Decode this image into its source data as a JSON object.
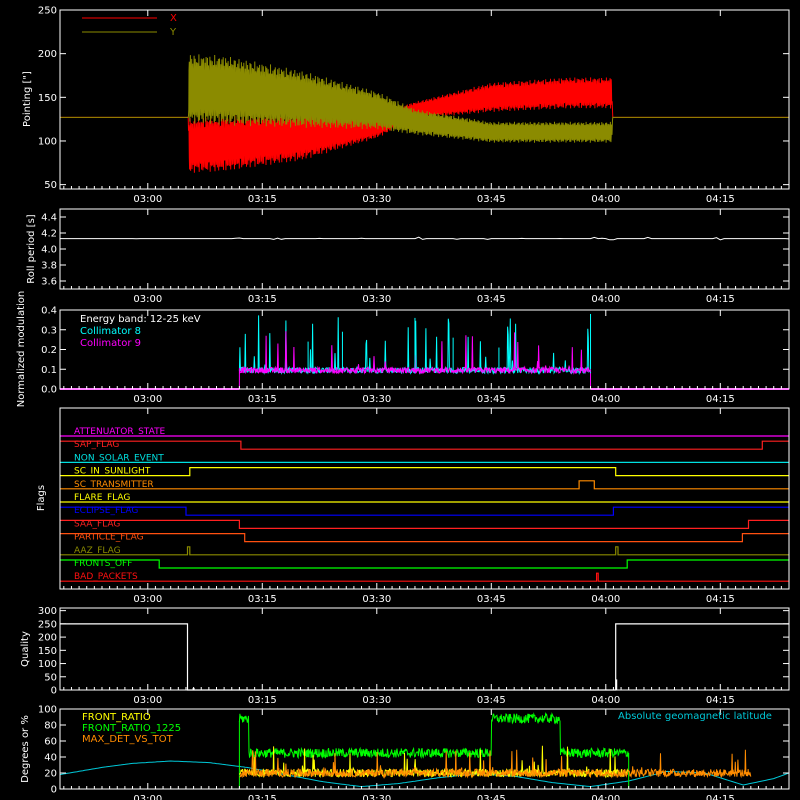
{
  "time_ticks": [
    "03:00",
    "03:15",
    "03:30",
    "03:45",
    "04:00",
    "04:15"
  ],
  "time_tick_minutes": [
    180,
    195,
    210,
    225,
    240,
    255
  ],
  "time_range_minutes": [
    168.5,
    264
  ],
  "colors": {
    "background": "#000000",
    "axes": "#ffffff",
    "pointing_x": "#ff0000",
    "pointing_y": "#8b8b00",
    "collimator_8": "#00ffff",
    "collimator_9": "#ff00ff",
    "front_ratio": "#ffff00",
    "front_ratio_1225": "#00ff00",
    "max_det_vs_tot": "#ff8c00",
    "geomag": "#00c8d8"
  },
  "chart_data": [
    {
      "type": "line",
      "ylabel": "Pointing [\"]",
      "ylim": [
        45,
        250
      ],
      "yticks": [
        50,
        100,
        150,
        200,
        250
      ],
      "legend_placement": "top-left",
      "legend": [
        {
          "label": "X",
          "color": "#ff0000"
        },
        {
          "label": "Y",
          "color": "#8b8b00"
        }
      ],
      "series": [
        {
          "name": "X",
          "x": [
            168.5,
            185.3,
            185.4,
            190,
            200,
            210,
            215,
            225,
            235,
            240.8,
            240.9,
            264
          ],
          "y_center": [
            127,
            127,
            95,
            97,
            105,
            118,
            135,
            150,
            155,
            155,
            127,
            127
          ],
          "half_amplitude": [
            0,
            0,
            32,
            32,
            28,
            15,
            10,
            17,
            18,
            18,
            0,
            0
          ]
        },
        {
          "name": "Y",
          "x": [
            168.5,
            185.3,
            185.4,
            190,
            200,
            210,
            215,
            225,
            235,
            240.8,
            240.9,
            264
          ],
          "y_center": [
            127,
            127,
            160,
            158,
            148,
            135,
            122,
            110,
            110,
            110,
            127,
            127
          ],
          "half_amplitude": [
            0,
            0,
            40,
            40,
            33,
            22,
            15,
            12,
            12,
            12,
            0,
            0
          ]
        }
      ]
    },
    {
      "type": "line",
      "ylabel": "Roll period [s]",
      "ylim": [
        3.5,
        4.5
      ],
      "yticks": [
        "3.6",
        "3.8",
        "4.0",
        "4.2",
        "4.4"
      ],
      "series": [
        {
          "name": "Roll period",
          "x": [
            168.5,
            264
          ],
          "y": [
            4.13,
            4.13
          ]
        }
      ]
    },
    {
      "type": "line",
      "ylabel": "Normalized modulation",
      "ylim": [
        0,
        0.4
      ],
      "yticks": [
        "0.0",
        "0.1",
        "0.2",
        "0.3",
        "0.4"
      ],
      "legend_placement": "top-left",
      "annotation": "Energy band: 12-25 keV",
      "legend": [
        {
          "label": "Collimator 8",
          "color": "#00ffff"
        },
        {
          "label": "Collimator 9",
          "color": "#ff00ff"
        }
      ],
      "series": [
        {
          "name": "Collimator 8",
          "x_range": [
            192,
            238
          ],
          "mean": 0.095
        },
        {
          "name": "Collimator 9",
          "x_range": [
            192,
            238
          ],
          "mean": 0.095
        }
      ]
    },
    {
      "type": "line",
      "ylabel": "Flags",
      "series": [
        {
          "name": "ATTENUATOR_STATE",
          "color": "#ff00ff",
          "steps": [
            [
              168.5,
              0
            ],
            [
              264,
              0
            ]
          ]
        },
        {
          "name": "SAP_FLAG",
          "color": "#ff2020",
          "steps": [
            [
              168.5,
              1
            ],
            [
              192.2,
              1
            ],
            [
              192.2,
              0
            ],
            [
              260.5,
              0
            ],
            [
              260.5,
              1
            ],
            [
              264,
              1
            ]
          ]
        },
        {
          "name": "NON_SOLAR_EVENT",
          "color": "#00e0e0",
          "steps": [
            [
              168.5,
              0
            ],
            [
              264,
              0
            ]
          ]
        },
        {
          "name": "SC_IN_SUNLIGHT",
          "color": "#ffff00",
          "steps": [
            [
              168.5,
              0
            ],
            [
              185.5,
              0
            ],
            [
              185.5,
              1
            ],
            [
              241.3,
              1
            ],
            [
              241.3,
              0
            ],
            [
              264,
              0
            ]
          ]
        },
        {
          "name": "SC_TRANSMITTER",
          "color": "#ff8c00",
          "steps": [
            [
              168.5,
              0
            ],
            [
              236.5,
              0
            ],
            [
              236.5,
              1
            ],
            [
              238.5,
              1
            ],
            [
              238.5,
              0
            ],
            [
              264,
              0
            ]
          ]
        },
        {
          "name": "FLARE_FLAG",
          "color": "#ffff00",
          "steps": [
            [
              168.5,
              0
            ],
            [
              264,
              0
            ]
          ]
        },
        {
          "name": "ECLIPSE_FLAG",
          "color": "#0000ff",
          "steps": [
            [
              168.5,
              1
            ],
            [
              185,
              1
            ],
            [
              185,
              0
            ],
            [
              241,
              0
            ],
            [
              241,
              1
            ],
            [
              264,
              1
            ]
          ]
        },
        {
          "name": "SAA_FLAG",
          "color": "#ff2020",
          "steps": [
            [
              168.5,
              1
            ],
            [
              192,
              1
            ],
            [
              192,
              0
            ],
            [
              258.7,
              0
            ],
            [
              258.7,
              1
            ],
            [
              264,
              1
            ]
          ]
        },
        {
          "name": "PARTICLE_FLAG",
          "color": "#ff5010",
          "steps": [
            [
              168.5,
              1
            ],
            [
              192.7,
              1
            ],
            [
              192.7,
              0
            ],
            [
              257.9,
              0
            ],
            [
              257.9,
              1
            ],
            [
              264,
              1
            ]
          ]
        },
        {
          "name": "AAZ_FLAG",
          "color": "#8b8b00",
          "steps": [
            [
              168.5,
              0
            ],
            [
              185.2,
              0
            ],
            [
              185.2,
              1
            ],
            [
              185.5,
              1
            ],
            [
              185.5,
              0
            ],
            [
              241.3,
              0
            ],
            [
              241.3,
              1
            ],
            [
              241.6,
              1
            ],
            [
              241.6,
              0
            ],
            [
              264,
              0
            ]
          ]
        },
        {
          "name": "FRONTS_OFF",
          "color": "#00ff00",
          "steps": [
            [
              168.5,
              1
            ],
            [
              181.5,
              1
            ],
            [
              181.5,
              0
            ],
            [
              242.8,
              0
            ],
            [
              242.8,
              1
            ],
            [
              264,
              1
            ]
          ]
        },
        {
          "name": "BAD_PACKETS",
          "color": "#ff1010",
          "steps": [
            [
              168.5,
              0
            ],
            [
              238.8,
              0
            ],
            [
              238.8,
              1
            ],
            [
              239,
              1
            ],
            [
              239,
              0
            ],
            [
              264,
              0
            ]
          ]
        }
      ]
    },
    {
      "type": "line",
      "ylabel": "Quality",
      "ylim": [
        0,
        310
      ],
      "yticks": [
        0,
        50,
        100,
        150,
        200,
        250,
        300
      ],
      "series": [
        {
          "name": "Quality",
          "x": [
            168.5,
            185.2,
            185.2,
            241.3,
            241.3,
            264
          ],
          "y": [
            250,
            250,
            0,
            0,
            250,
            250
          ]
        }
      ]
    },
    {
      "type": "line",
      "ylabel": "Degrees or %",
      "ylim": [
        0,
        100
      ],
      "yticks": [
        0,
        20,
        40,
        60,
        80,
        100
      ],
      "legend_placement": "top-left",
      "annotation": "Absolute geomagnetic latitude",
      "legend": [
        {
          "label": "FRONT_RATIO",
          "color": "#ffff00"
        },
        {
          "label": "FRONT_RATIO_1225",
          "color": "#00ff00"
        },
        {
          "label": "MAX_DET_VS_TOT",
          "color": "#ff8c00"
        }
      ],
      "series": [
        {
          "name": "FRONT_RATIO",
          "x_range": [
            192,
            243
          ],
          "mean": 20
        },
        {
          "name": "FRONT_RATIO_1225",
          "x_range": [
            192,
            243
          ],
          "mean": 45
        },
        {
          "name": "MAX_DET_VS_TOT",
          "x_range": [
            192,
            259
          ],
          "mean": 20
        },
        {
          "name": "Absolute geomagnetic latitude",
          "x": [
            168.5,
            174,
            178,
            183,
            188,
            193,
            198,
            203,
            208,
            213,
            218,
            223,
            228,
            233,
            238,
            243,
            248,
            253,
            258,
            262,
            264
          ],
          "y": [
            18,
            27,
            32,
            35,
            33,
            27,
            18,
            9,
            3,
            7,
            14,
            19,
            16,
            8,
            3,
            10,
            22,
            20,
            5,
            13,
            20
          ]
        }
      ]
    }
  ]
}
